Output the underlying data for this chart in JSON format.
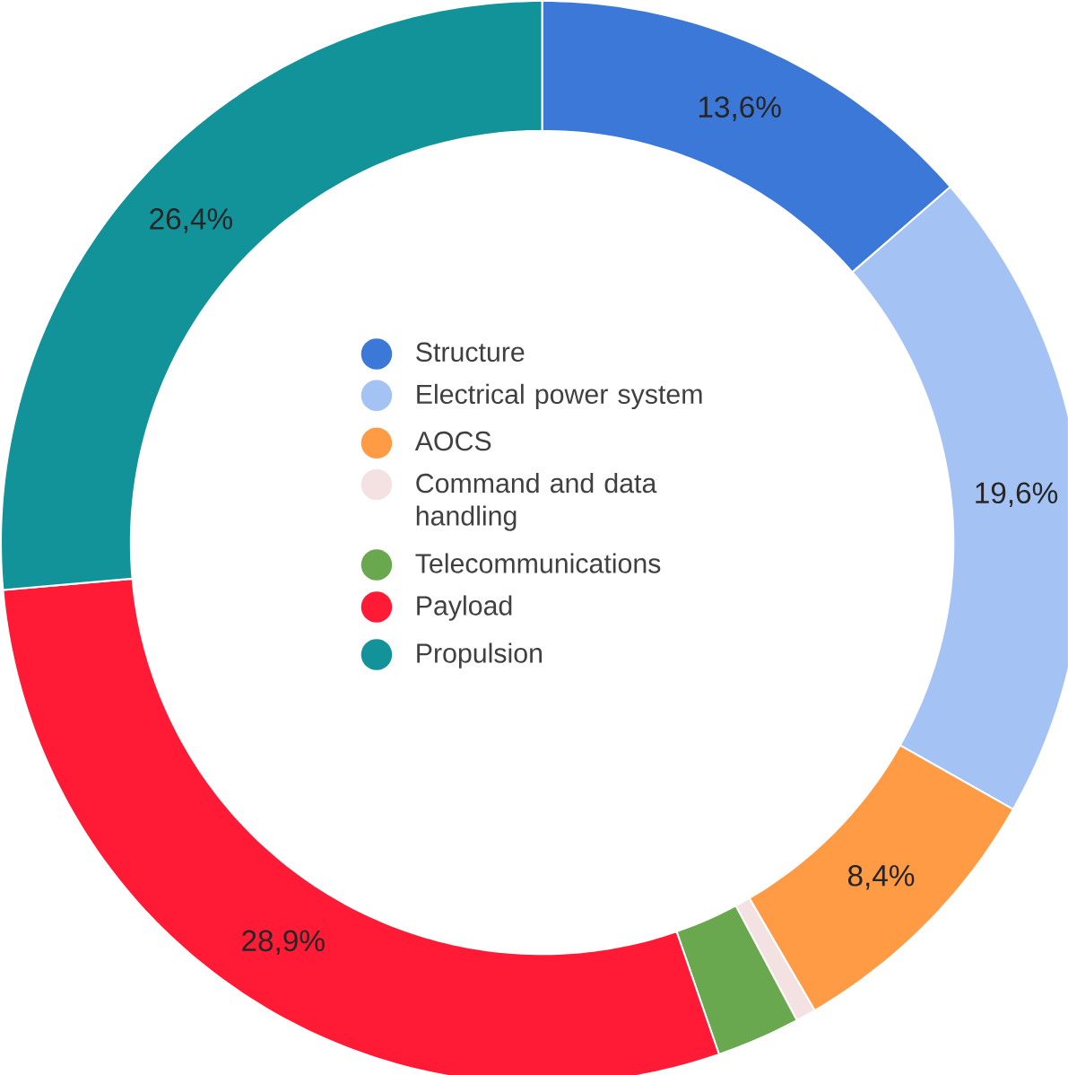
{
  "chart_data": {
    "type": "donut",
    "categories": [
      "Structure",
      "Electrical power system",
      "AOCS",
      "Command and data handling",
      "Telecommunications",
      "Payload",
      "Propulsion"
    ],
    "values": [
      13.6,
      19.6,
      8.4,
      0.6,
      2.5,
      28.9,
      26.4
    ],
    "colors": [
      "#3c78d8",
      "#a4c2f4",
      "#ff9a45",
      "#f4e2e2",
      "#6aa84f",
      "#ff1a35",
      "#12939a"
    ],
    "value_labels": [
      "13,6%",
      "19,6%",
      "8,4%",
      null,
      null,
      "28,9%",
      "26,4%"
    ],
    "legend": "center"
  }
}
